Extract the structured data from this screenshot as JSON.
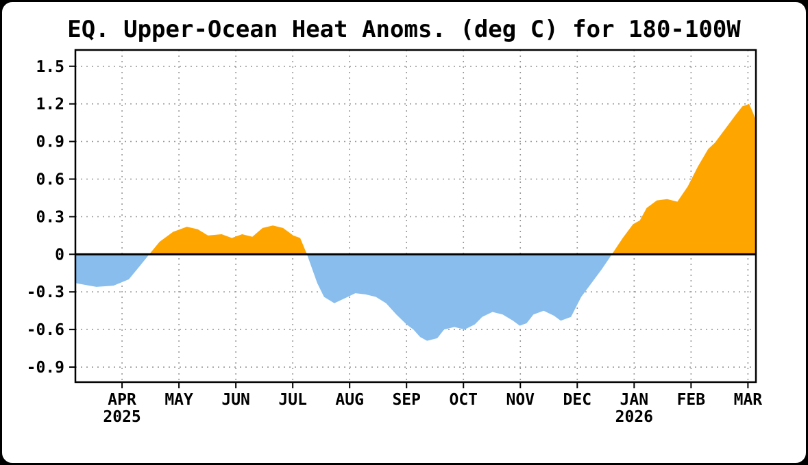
{
  "page": {
    "background_color": "#000000",
    "card_background_color": "#ffffff"
  },
  "chart_data": {
    "type": "area",
    "title": "EQ. Upper-Ocean Heat Anoms. (deg C) for 180-100W",
    "xlabel": "",
    "ylabel": "",
    "units": "deg C",
    "region": "180-100W",
    "grid": true,
    "legend": "none",
    "ylim": [
      -1.02,
      1.63
    ],
    "x_range": [
      -0.82,
      11.14
    ],
    "yticks": [
      -0.9,
      -0.6,
      -0.3,
      0,
      0.3,
      0.6,
      0.9,
      1.2,
      1.5
    ],
    "ytick_labels": [
      "-0.9",
      "-0.6",
      "-0.3",
      "0",
      "0.3",
      "0.6",
      "0.9",
      "1.2",
      "1.5"
    ],
    "xticks": [
      {
        "label": "APR",
        "year": "2025"
      },
      {
        "label": "MAY",
        "year": ""
      },
      {
        "label": "JUN",
        "year": ""
      },
      {
        "label": "JUL",
        "year": ""
      },
      {
        "label": "AUG",
        "year": ""
      },
      {
        "label": "SEP",
        "year": ""
      },
      {
        "label": "OCT",
        "year": ""
      },
      {
        "label": "NOV",
        "year": ""
      },
      {
        "label": "DEC",
        "year": ""
      },
      {
        "label": "JAN",
        "year": "2026"
      },
      {
        "label": "FEB",
        "year": ""
      },
      {
        "label": "MAR",
        "year": ""
      }
    ],
    "colors": {
      "positive_fill": "#FFA500",
      "negative_fill": "#88BDED",
      "grid": "#979797",
      "axis": "#000000",
      "text": "#000000"
    },
    "series": [
      {
        "name": "upper-ocean-heat-anomaly",
        "x_unit": "months-from-APR-tick",
        "points": [
          [
            -0.82,
            -0.23
          ],
          [
            -0.45,
            -0.26
          ],
          [
            -0.15,
            -0.25
          ],
          [
            0.12,
            -0.2
          ],
          [
            0.3,
            -0.1
          ],
          [
            0.48,
            0.0
          ],
          [
            0.66,
            0.1
          ],
          [
            0.9,
            0.18
          ],
          [
            1.14,
            0.22
          ],
          [
            1.33,
            0.2
          ],
          [
            1.51,
            0.15
          ],
          [
            1.75,
            0.16
          ],
          [
            1.93,
            0.13
          ],
          [
            2.11,
            0.16
          ],
          [
            2.29,
            0.14
          ],
          [
            2.47,
            0.21
          ],
          [
            2.65,
            0.23
          ],
          [
            2.83,
            0.21
          ],
          [
            3.01,
            0.15
          ],
          [
            3.13,
            0.13
          ],
          [
            3.25,
            0.0
          ],
          [
            3.43,
            -0.23
          ],
          [
            3.55,
            -0.34
          ],
          [
            3.73,
            -0.39
          ],
          [
            3.92,
            -0.35
          ],
          [
            4.1,
            -0.31
          ],
          [
            4.28,
            -0.32
          ],
          [
            4.46,
            -0.34
          ],
          [
            4.64,
            -0.39
          ],
          [
            4.82,
            -0.48
          ],
          [
            5.0,
            -0.56
          ],
          [
            5.12,
            -0.6
          ],
          [
            5.24,
            -0.66
          ],
          [
            5.36,
            -0.69
          ],
          [
            5.54,
            -0.67
          ],
          [
            5.66,
            -0.6
          ],
          [
            5.84,
            -0.58
          ],
          [
            6.02,
            -0.6
          ],
          [
            6.2,
            -0.56
          ],
          [
            6.33,
            -0.5
          ],
          [
            6.51,
            -0.46
          ],
          [
            6.69,
            -0.48
          ],
          [
            6.87,
            -0.53
          ],
          [
            6.99,
            -0.57
          ],
          [
            7.11,
            -0.55
          ],
          [
            7.23,
            -0.48
          ],
          [
            7.41,
            -0.45
          ],
          [
            7.59,
            -0.49
          ],
          [
            7.71,
            -0.53
          ],
          [
            7.89,
            -0.5
          ],
          [
            8.07,
            -0.34
          ],
          [
            8.25,
            -0.23
          ],
          [
            8.43,
            -0.12
          ],
          [
            8.61,
            0.0
          ],
          [
            8.8,
            0.13
          ],
          [
            8.98,
            0.24
          ],
          [
            9.1,
            0.27
          ],
          [
            9.22,
            0.37
          ],
          [
            9.4,
            0.43
          ],
          [
            9.58,
            0.44
          ],
          [
            9.76,
            0.42
          ],
          [
            9.94,
            0.54
          ],
          [
            10.12,
            0.7
          ],
          [
            10.3,
            0.84
          ],
          [
            10.42,
            0.89
          ],
          [
            10.6,
            1.0
          ],
          [
            10.78,
            1.11
          ],
          [
            10.9,
            1.18
          ],
          [
            11.02,
            1.2
          ],
          [
            11.08,
            1.14
          ],
          [
            11.14,
            1.07
          ]
        ]
      }
    ]
  }
}
